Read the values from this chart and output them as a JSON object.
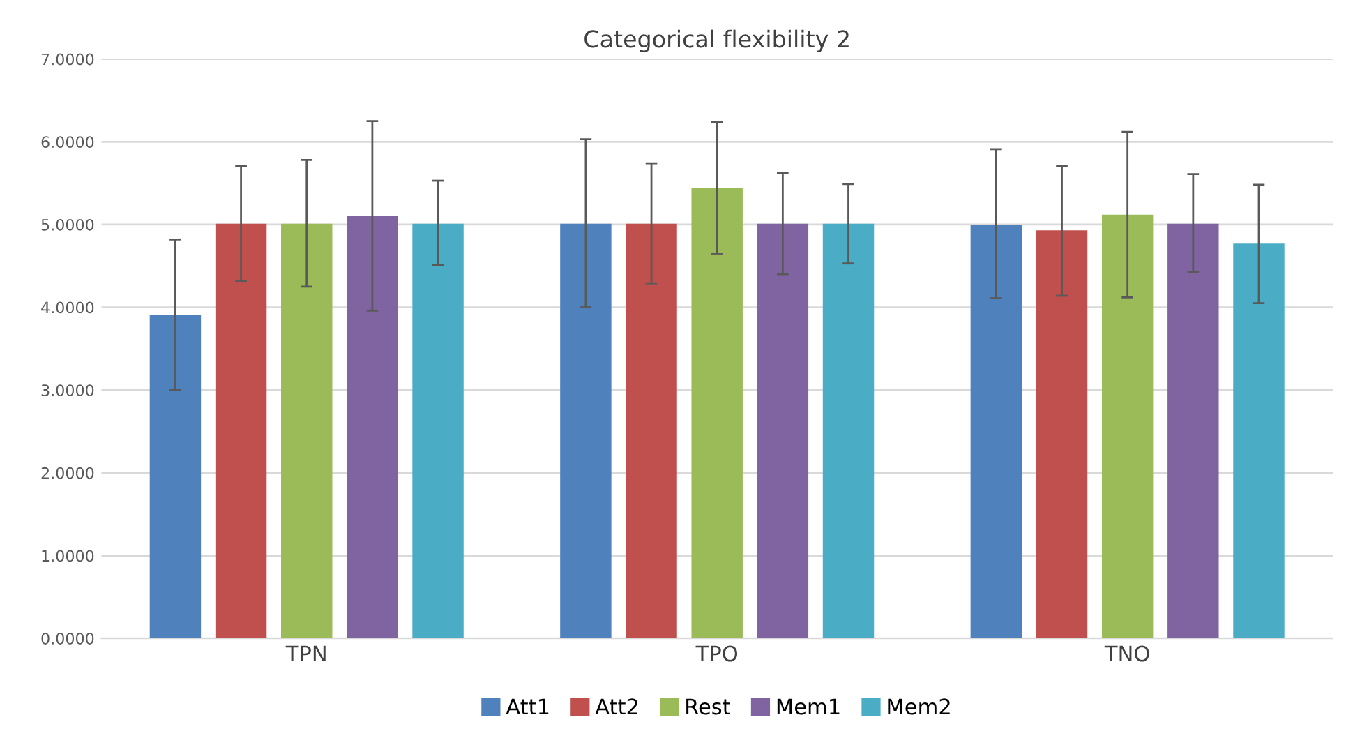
{
  "chart_data": {
    "type": "bar",
    "title": "Categorical flexibility 2",
    "categories": [
      "TPN",
      "TPO",
      "TNO"
    ],
    "series": [
      {
        "name": "Att1",
        "color": "#4f81bd",
        "values": [
          3.91,
          5.01,
          5.0
        ],
        "errors": [
          [
            3.0,
            4.82
          ],
          [
            4.0,
            6.03
          ],
          [
            4.11,
            5.91
          ]
        ]
      },
      {
        "name": "Att2",
        "color": "#c0504d",
        "values": [
          5.01,
          5.01,
          4.93
        ],
        "errors": [
          [
            4.32,
            5.71
          ],
          [
            4.29,
            5.74
          ],
          [
            4.14,
            5.71
          ]
        ]
      },
      {
        "name": "Rest",
        "color": "#9bbb59",
        "values": [
          5.01,
          5.44,
          5.12
        ],
        "errors": [
          [
            4.25,
            5.78
          ],
          [
            4.65,
            6.24
          ],
          [
            4.12,
            6.12
          ]
        ]
      },
      {
        "name": "Mem1",
        "color": "#8064a2",
        "values": [
          5.1,
          5.01,
          5.01
        ],
        "errors": [
          [
            3.96,
            6.25
          ],
          [
            4.4,
            5.62
          ],
          [
            4.43,
            5.61
          ]
        ]
      },
      {
        "name": "Mem2",
        "color": "#4bacc6",
        "values": [
          5.01,
          5.01,
          4.77
        ],
        "errors": [
          [
            4.51,
            5.53
          ],
          [
            4.53,
            5.49
          ],
          [
            4.05,
            5.48
          ]
        ]
      }
    ],
    "ylim": [
      0,
      7
    ],
    "yticks": [
      {
        "value": 0,
        "label": "0.0000"
      },
      {
        "value": 1,
        "label": "1.0000"
      },
      {
        "value": 2,
        "label": "2.0000"
      },
      {
        "value": 3,
        "label": "3.0000"
      },
      {
        "value": 4,
        "label": "4.0000"
      },
      {
        "value": 5,
        "label": "5.0000"
      },
      {
        "value": 6,
        "label": "6.0000"
      },
      {
        "value": 7,
        "label": "7.0000"
      }
    ],
    "grid": "y",
    "legend": "bottom"
  }
}
